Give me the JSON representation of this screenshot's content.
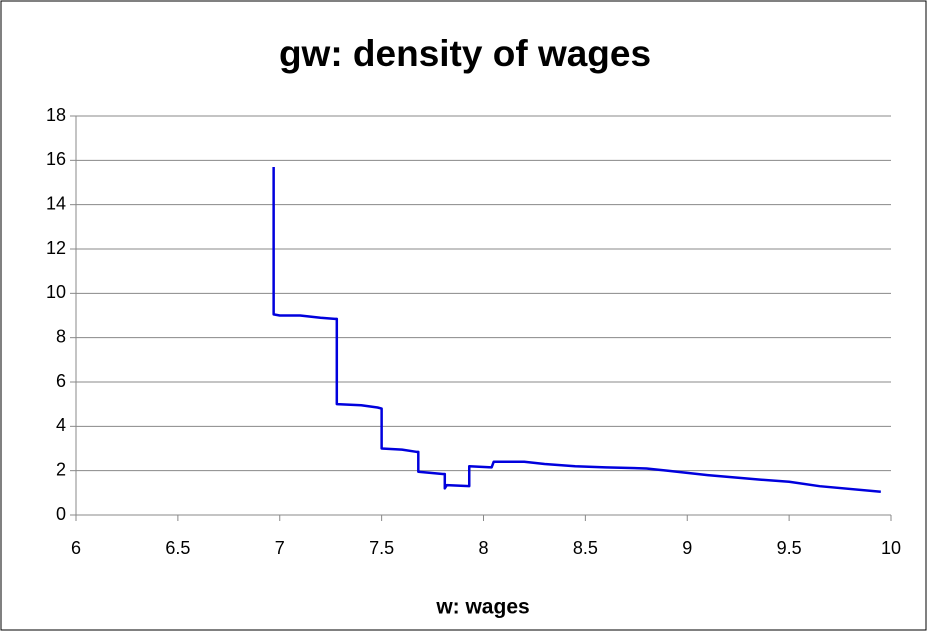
{
  "chart_data": {
    "type": "line",
    "title": "gw: density of wages",
    "xlabel": "w: wages",
    "series": [
      {
        "name": "gw",
        "color": "#0000dd",
        "x": [
          6.97,
          6.97,
          7.0,
          7.1,
          7.2,
          7.27,
          7.28,
          7.28,
          7.4,
          7.48,
          7.5,
          7.5,
          7.6,
          7.67,
          7.68,
          7.68,
          7.8,
          7.81,
          7.81,
          7.82,
          7.93,
          7.93,
          8.04,
          8.05,
          8.2,
          8.3,
          8.45,
          8.6,
          8.8,
          8.9,
          9.1,
          9.35,
          9.5,
          9.65,
          9.95
        ],
        "values": [
          15.7,
          9.05,
          9.0,
          9.0,
          8.9,
          8.85,
          8.85,
          5.0,
          4.95,
          4.85,
          4.8,
          3.0,
          2.95,
          2.85,
          2.85,
          1.95,
          1.85,
          1.85,
          1.2,
          1.35,
          1.3,
          2.2,
          2.15,
          2.4,
          2.4,
          2.3,
          2.2,
          2.15,
          2.1,
          2.0,
          1.8,
          1.6,
          1.5,
          1.3,
          1.05
        ]
      }
    ],
    "xlim": [
      6,
      10
    ],
    "xticks": [
      6,
      6.5,
      7,
      7.5,
      8,
      8.5,
      9,
      9.5,
      10
    ],
    "ylim": [
      0,
      18
    ],
    "yticks": [
      0,
      2,
      4,
      6,
      8,
      10,
      12,
      14,
      16,
      18
    ],
    "grid": true
  }
}
